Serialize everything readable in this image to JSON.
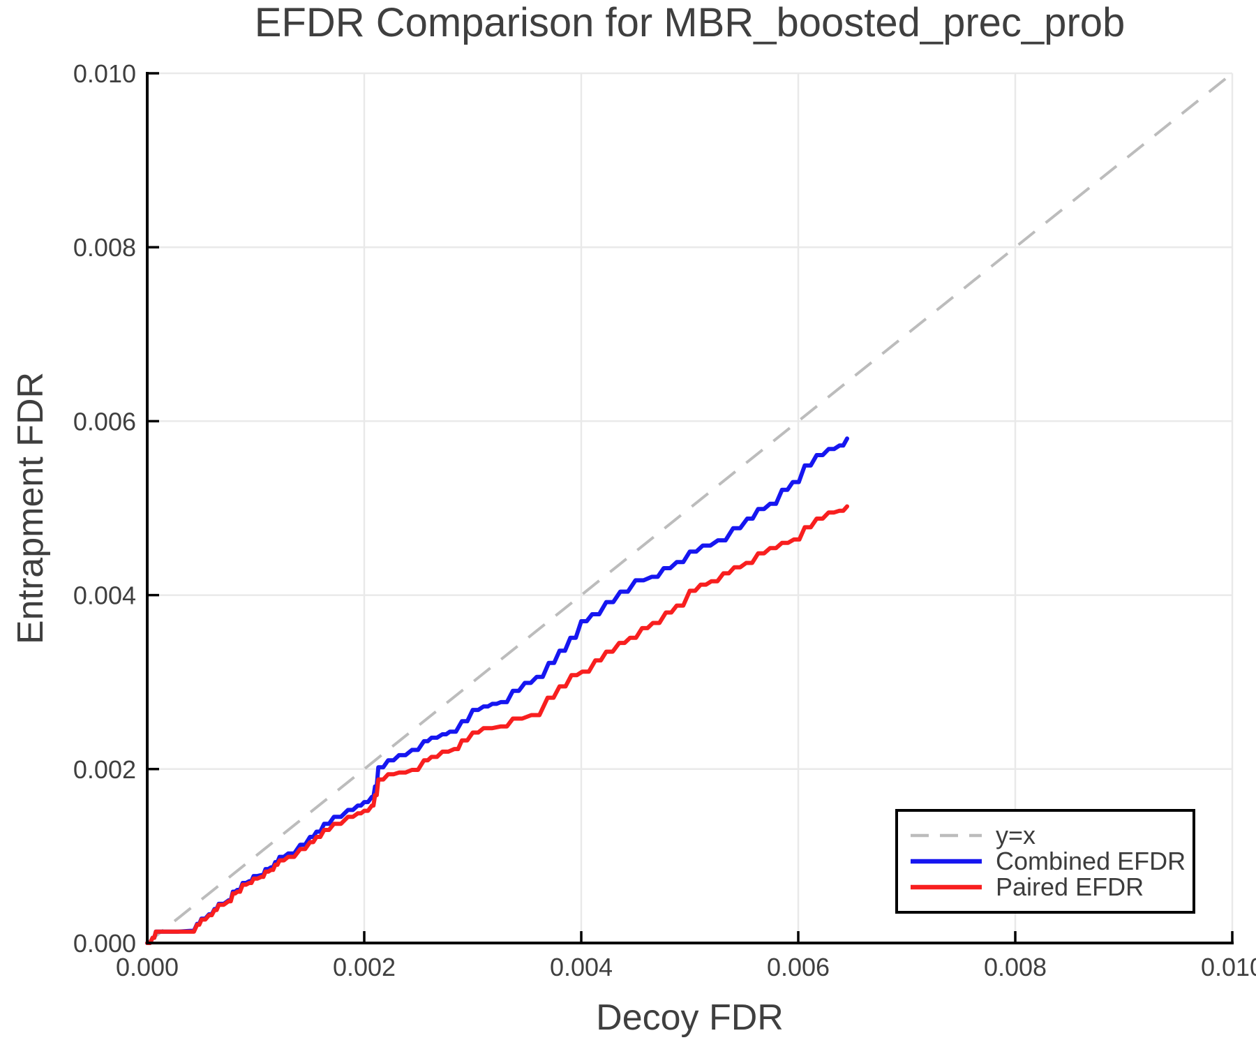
{
  "chart_data": {
    "type": "line",
    "title": "EFDR Comparison for MBR_boosted_prec_prob",
    "xlabel": "Decoy FDR",
    "ylabel": "Entrapment FDR",
    "xlim": [
      0,
      0.01
    ],
    "ylim": [
      0,
      0.01
    ],
    "x_ticks": [
      0,
      0.002,
      0.004,
      0.006,
      0.008,
      0.01
    ],
    "x_tick_labels": [
      "0.000",
      "0.002",
      "0.004",
      "0.006",
      "0.008",
      "0.010"
    ],
    "y_ticks": [
      0,
      0.002,
      0.004,
      0.006,
      0.008,
      0.01
    ],
    "y_tick_labels": [
      "0.000",
      "0.002",
      "0.004",
      "0.006",
      "0.008",
      "0.010"
    ],
    "grid": true,
    "legend_position": "lower right",
    "colors": {
      "background": "#ffffff",
      "grid": "#e9e9e9",
      "axis": "#000000",
      "text": "#3f3f3f",
      "diagonal": "#bcbcbc",
      "combined": "#1616f0",
      "paired": "#f81f1f"
    },
    "legend": [
      {
        "label": "y=x",
        "color": "#bcbcbc",
        "dashed": true
      },
      {
        "label": "Combined EFDR",
        "color": "#1616f0",
        "dashed": false
      },
      {
        "label": "Paired EFDR",
        "color": "#f81f1f",
        "dashed": false
      }
    ],
    "reference_line": {
      "name": "y=x",
      "x": [
        0,
        0.01
      ],
      "y": [
        0,
        0.01
      ]
    },
    "series": [
      {
        "name": "Combined EFDR",
        "color": "#1616f0",
        "points": [
          [
            0,
            0
          ],
          [
            5e-05,
            6e-05
          ],
          [
            8e-05,
            0.00013
          ],
          [
            0.00017,
            0.00013
          ],
          [
            0.0004,
            0.00014
          ],
          [
            0.00046,
            0.00022
          ],
          [
            0.0005,
            0.00028
          ],
          [
            0.00057,
            0.00033
          ],
          [
            0.00062,
            0.00039
          ],
          [
            0.00066,
            0.00045
          ],
          [
            0.00075,
            0.00049
          ],
          [
            0.00079,
            0.00059
          ],
          [
            0.00083,
            0.00061
          ],
          [
            0.00088,
            0.00069
          ],
          [
            0.00094,
            0.00071
          ],
          [
            0.00098,
            0.00077
          ],
          [
            0.00105,
            0.00078
          ],
          [
            0.00109,
            0.00085
          ],
          [
            0.00114,
            0.00087
          ],
          [
            0.00118,
            0.00093
          ],
          [
            0.00122,
            0.00099
          ],
          [
            0.0013,
            0.00103
          ],
          [
            0.00141,
            0.00113
          ],
          [
            0.0015,
            0.00122
          ],
          [
            0.00156,
            0.00128
          ],
          [
            0.00163,
            0.00137
          ],
          [
            0.00172,
            0.00145
          ],
          [
            0.00185,
            0.00153
          ],
          [
            0.00194,
            0.00158
          ],
          [
            0.002,
            0.00162
          ],
          [
            0.00207,
            0.00168
          ],
          [
            0.0021,
            0.0018
          ],
          [
            0.00213,
            0.00202
          ],
          [
            0.00222,
            0.0021
          ],
          [
            0.00232,
            0.00216
          ],
          [
            0.00244,
            0.00222
          ],
          [
            0.00255,
            0.00232
          ],
          [
            0.00262,
            0.00236
          ],
          [
            0.00272,
            0.0024
          ],
          [
            0.00279,
            0.00243
          ],
          [
            0.0029,
            0.00255
          ],
          [
            0.003,
            0.00268
          ],
          [
            0.0031,
            0.00272
          ],
          [
            0.00318,
            0.00275
          ],
          [
            0.00326,
            0.00277
          ],
          [
            0.00337,
            0.0029
          ],
          [
            0.00348,
            0.00299
          ],
          [
            0.00359,
            0.00306
          ],
          [
            0.0037,
            0.00322
          ],
          [
            0.0038,
            0.00336
          ],
          [
            0.0039,
            0.00351
          ],
          [
            0.004,
            0.0037
          ],
          [
            0.0041,
            0.00378
          ],
          [
            0.00423,
            0.00392
          ],
          [
            0.00436,
            0.00404
          ],
          [
            0.0045,
            0.00417
          ],
          [
            0.00465,
            0.00421
          ],
          [
            0.00476,
            0.00431
          ],
          [
            0.00488,
            0.00438
          ],
          [
            0.005,
            0.0045
          ],
          [
            0.00512,
            0.00457
          ],
          [
            0.00526,
            0.00463
          ],
          [
            0.0054,
            0.00477
          ],
          [
            0.00553,
            0.00488
          ],
          [
            0.00563,
            0.00499
          ],
          [
            0.00574,
            0.00505
          ],
          [
            0.00585,
            0.00521
          ],
          [
            0.00595,
            0.0053
          ],
          [
            0.00606,
            0.00549
          ],
          [
            0.00617,
            0.00561
          ],
          [
            0.00628,
            0.00568
          ],
          [
            0.00638,
            0.00572
          ],
          [
            0.00645,
            0.0058
          ]
        ]
      },
      {
        "name": "Paired EFDR",
        "color": "#f81f1f",
        "points": [
          [
            0,
            0
          ],
          [
            5e-05,
            6e-05
          ],
          [
            8e-05,
            0.00013
          ],
          [
            0.00017,
            0.00013
          ],
          [
            0.0004,
            0.00013
          ],
          [
            0.00046,
            0.00021
          ],
          [
            0.0005,
            0.00027
          ],
          [
            0.00057,
            0.00032
          ],
          [
            0.00062,
            0.00038
          ],
          [
            0.00066,
            0.00044
          ],
          [
            0.00075,
            0.00048
          ],
          [
            0.00079,
            0.00057
          ],
          [
            0.00083,
            0.00059
          ],
          [
            0.00088,
            0.00067
          ],
          [
            0.00094,
            0.00069
          ],
          [
            0.00098,
            0.00074
          ],
          [
            0.00105,
            0.00076
          ],
          [
            0.00109,
            0.00082
          ],
          [
            0.00114,
            0.00084
          ],
          [
            0.00118,
            0.0009
          ],
          [
            0.00122,
            0.00095
          ],
          [
            0.0013,
            0.00099
          ],
          [
            0.00141,
            0.00108
          ],
          [
            0.0015,
            0.00116
          ],
          [
            0.00156,
            0.00122
          ],
          [
            0.00163,
            0.0013
          ],
          [
            0.00172,
            0.00137
          ],
          [
            0.00185,
            0.00145
          ],
          [
            0.00194,
            0.00149
          ],
          [
            0.002,
            0.00152
          ],
          [
            0.00207,
            0.00158
          ],
          [
            0.0021,
            0.0017
          ],
          [
            0.00213,
            0.00188
          ],
          [
            0.00222,
            0.00194
          ],
          [
            0.00232,
            0.00196
          ],
          [
            0.00244,
            0.00199
          ],
          [
            0.00255,
            0.0021
          ],
          [
            0.00262,
            0.00214
          ],
          [
            0.00272,
            0.0022
          ],
          [
            0.00283,
            0.00223
          ],
          [
            0.0029,
            0.00233
          ],
          [
            0.003,
            0.00242
          ],
          [
            0.0031,
            0.00247
          ],
          [
            0.00326,
            0.00249
          ],
          [
            0.00337,
            0.00258
          ],
          [
            0.00354,
            0.00262
          ],
          [
            0.00369,
            0.00282
          ],
          [
            0.0038,
            0.00295
          ],
          [
            0.00391,
            0.00308
          ],
          [
            0.00401,
            0.00312
          ],
          [
            0.00413,
            0.00325
          ],
          [
            0.00423,
            0.00335
          ],
          [
            0.00435,
            0.00345
          ],
          [
            0.00445,
            0.00351
          ],
          [
            0.00456,
            0.00362
          ],
          [
            0.00466,
            0.00368
          ],
          [
            0.00478,
            0.0038
          ],
          [
            0.00488,
            0.00388
          ],
          [
            0.005,
            0.00405
          ],
          [
            0.0051,
            0.00412
          ],
          [
            0.0052,
            0.00416
          ],
          [
            0.00531,
            0.00425
          ],
          [
            0.00541,
            0.00432
          ],
          [
            0.00552,
            0.00437
          ],
          [
            0.00563,
            0.00448
          ],
          [
            0.00574,
            0.00454
          ],
          [
            0.00585,
            0.0046
          ],
          [
            0.00596,
            0.00464
          ],
          [
            0.00606,
            0.00478
          ],
          [
            0.00617,
            0.00488
          ],
          [
            0.00628,
            0.00495
          ],
          [
            0.00638,
            0.00497
          ],
          [
            0.00645,
            0.00502
          ]
        ]
      }
    ]
  }
}
